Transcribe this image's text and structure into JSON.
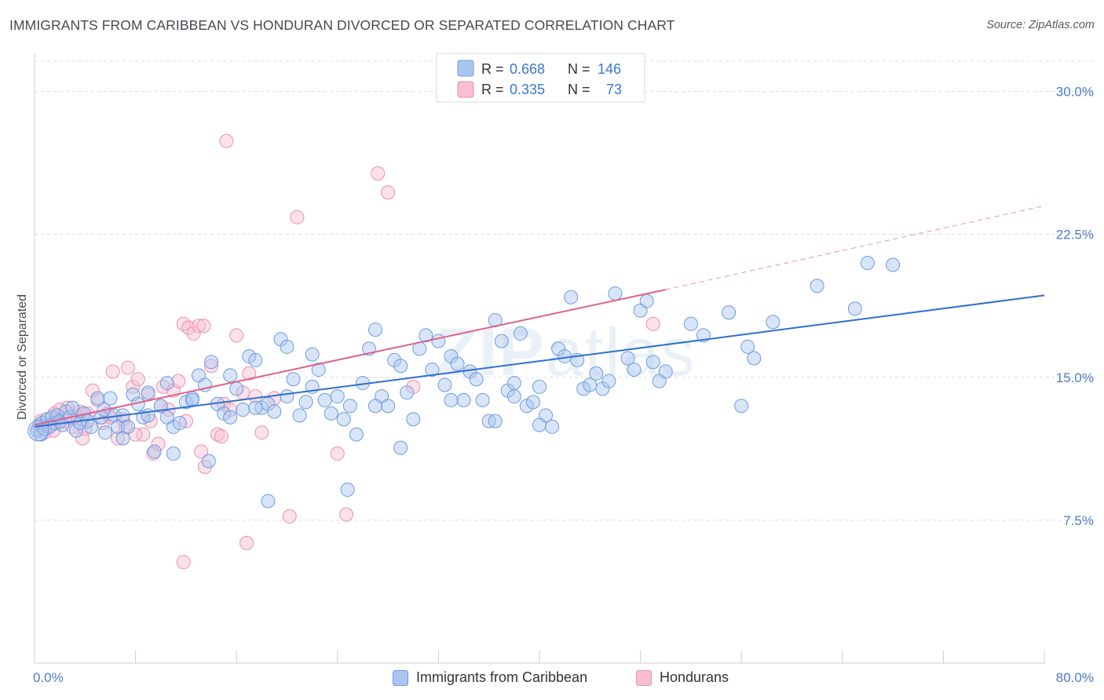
{
  "title": "IMMIGRANTS FROM CARIBBEAN VS HONDURAN DIVORCED OR SEPARATED CORRELATION CHART",
  "source": "Source: ZipAtlas.com",
  "watermark": {
    "bold": "ZIP",
    "thin": "atlas"
  },
  "legend_box": {
    "rows": [
      {
        "r_label": "R =",
        "r_value": "0.668",
        "n_label": "N =",
        "n_value": "146"
      },
      {
        "r_label": "R =",
        "r_value": "0.335",
        "n_label": "N =",
        "n_value": "73"
      }
    ]
  },
  "bottom_legend": [
    "Immigrants from Caribbean",
    "Hondurans"
  ],
  "colors": {
    "blue_fill": "#a9c6f0",
    "blue_stroke": "#6d9be0",
    "blue_line": "#2f6fce",
    "pink_fill": "#f7bfd0",
    "pink_stroke": "#ec8fae",
    "pink_line": "#e0608a",
    "tick_text": "#4a7cc9",
    "grid": "#d8dce2"
  },
  "chart_data": {
    "type": "scatter",
    "title": "IMMIGRANTS FROM CARIBBEAN VS HONDURAN DIVORCED OR SEPARATED CORRELATION CHART",
    "xlabel": "",
    "ylabel": "Divorced or Separated",
    "xlim": [
      0,
      80
    ],
    "ylim": [
      0,
      32
    ],
    "x_tick_labels": [
      "0.0%",
      "80.0%"
    ],
    "y_ticks": [
      7.5,
      15.0,
      22.5,
      30.0
    ],
    "y_tick_labels": [
      "7.5%",
      "15.0%",
      "22.5%",
      "30.0%"
    ],
    "grid": true,
    "legend_position": "top-center",
    "series": [
      {
        "name": "Immigrants from Caribbean",
        "r": 0.668,
        "n": 146,
        "trend": {
          "x": [
            0,
            80
          ],
          "y": [
            12.4,
            19.3
          ],
          "dashed": false
        },
        "points": [
          [
            0.2,
            12.2
          ],
          [
            0.4,
            12.5
          ],
          [
            0.5,
            12.0
          ],
          [
            0.6,
            12.6
          ],
          [
            0.8,
            12.3
          ],
          [
            1.0,
            12.8
          ],
          [
            1.2,
            12.4
          ],
          [
            1.4,
            12.9
          ],
          [
            1.6,
            12.6
          ],
          [
            1.8,
            13.0
          ],
          [
            2.0,
            12.7
          ],
          [
            2.2,
            12.5
          ],
          [
            2.5,
            13.2
          ],
          [
            2.8,
            12.9
          ],
          [
            3.0,
            13.4
          ],
          [
            3.3,
            12.2
          ],
          [
            3.6,
            12.6
          ],
          [
            3.9,
            13.1
          ],
          [
            4.2,
            12.7
          ],
          [
            4.5,
            12.4
          ],
          [
            5.0,
            13.9
          ],
          [
            5.3,
            12.9
          ],
          [
            5.6,
            12.1
          ],
          [
            6.0,
            13.9
          ],
          [
            6.3,
            13.0
          ],
          [
            6.6,
            12.4
          ],
          [
            7.0,
            11.8
          ],
          [
            7.4,
            12.4
          ],
          [
            7.8,
            14.1
          ],
          [
            8.2,
            13.6
          ],
          [
            8.6,
            12.9
          ],
          [
            9.0,
            14.2
          ],
          [
            9.5,
            11.1
          ],
          [
            10.0,
            13.5
          ],
          [
            10.5,
            14.7
          ],
          [
            11.0,
            12.4
          ],
          [
            11.5,
            12.6
          ],
          [
            12.0,
            13.7
          ],
          [
            12.5,
            13.9
          ],
          [
            13.0,
            15.1
          ],
          [
            13.5,
            14.6
          ],
          [
            14.0,
            15.8
          ],
          [
            14.5,
            13.6
          ],
          [
            15.0,
            13.1
          ],
          [
            15.5,
            15.1
          ],
          [
            16.0,
            14.4
          ],
          [
            16.5,
            13.3
          ],
          [
            17.0,
            16.1
          ],
          [
            17.5,
            15.9
          ],
          [
            18.0,
            13.4
          ],
          [
            18.5,
            13.6
          ],
          [
            19.0,
            13.2
          ],
          [
            19.5,
            17.0
          ],
          [
            20.0,
            16.6
          ],
          [
            20.5,
            14.9
          ],
          [
            21.0,
            13.0
          ],
          [
            21.5,
            13.7
          ],
          [
            22.0,
            14.5
          ],
          [
            22.5,
            15.4
          ],
          [
            23.0,
            13.8
          ],
          [
            23.5,
            13.1
          ],
          [
            24.0,
            14.0
          ],
          [
            24.5,
            12.8
          ],
          [
            25.0,
            13.5
          ],
          [
            25.5,
            12.0
          ],
          [
            26.0,
            14.7
          ],
          [
            26.5,
            16.5
          ],
          [
            27.0,
            17.5
          ],
          [
            27.5,
            14.0
          ],
          [
            28.0,
            13.5
          ],
          [
            28.5,
            15.9
          ],
          [
            29.0,
            15.6
          ],
          [
            29.5,
            14.2
          ],
          [
            30.0,
            12.8
          ],
          [
            30.5,
            16.5
          ],
          [
            31.0,
            17.2
          ],
          [
            31.5,
            15.4
          ],
          [
            32.0,
            16.9
          ],
          [
            32.5,
            14.6
          ],
          [
            33.0,
            16.1
          ],
          [
            33.5,
            15.7
          ],
          [
            34.0,
            13.8
          ],
          [
            34.5,
            15.3
          ],
          [
            35.0,
            14.9
          ],
          [
            35.5,
            13.8
          ],
          [
            36.0,
            12.7
          ],
          [
            36.5,
            18.0
          ],
          [
            37.0,
            16.9
          ],
          [
            37.5,
            14.3
          ],
          [
            38.0,
            14.7
          ],
          [
            38.5,
            17.3
          ],
          [
            39.0,
            13.5
          ],
          [
            39.5,
            13.7
          ],
          [
            40.0,
            14.5
          ],
          [
            40.5,
            13.0
          ],
          [
            41.0,
            12.4
          ],
          [
            41.5,
            16.5
          ],
          [
            42.0,
            16.1
          ],
          [
            42.5,
            19.2
          ],
          [
            43.0,
            15.9
          ],
          [
            43.5,
            14.4
          ],
          [
            44.0,
            14.6
          ],
          [
            44.5,
            15.2
          ],
          [
            45.0,
            14.4
          ],
          [
            46.0,
            19.4
          ],
          [
            47.0,
            16.0
          ],
          [
            47.5,
            15.4
          ],
          [
            48.0,
            18.5
          ],
          [
            48.5,
            19.0
          ],
          [
            49.0,
            15.8
          ],
          [
            49.5,
            14.8
          ],
          [
            50.0,
            15.3
          ],
          [
            52.0,
            17.8
          ],
          [
            53.0,
            17.2
          ],
          [
            55.0,
            18.4
          ],
          [
            56.0,
            13.5
          ],
          [
            56.5,
            16.6
          ],
          [
            57.0,
            16.0
          ],
          [
            58.5,
            17.9
          ],
          [
            62.0,
            19.8
          ],
          [
            65.0,
            18.6
          ],
          [
            66.0,
            21.0
          ],
          [
            68.0,
            20.9
          ],
          [
            11.0,
            11.0
          ],
          [
            13.8,
            10.6
          ],
          [
            18.5,
            8.5
          ],
          [
            24.8,
            9.1
          ],
          [
            29.0,
            11.3
          ],
          [
            20.0,
            14.0
          ],
          [
            22.0,
            16.2
          ],
          [
            27.0,
            13.5
          ],
          [
            33.0,
            13.8
          ],
          [
            36.5,
            12.7
          ],
          [
            38.0,
            14.0
          ],
          [
            40.0,
            12.5
          ],
          [
            45.5,
            14.8
          ],
          [
            5.5,
            13.3
          ],
          [
            7.0,
            13.0
          ],
          [
            9.0,
            13.0
          ],
          [
            10.5,
            12.9
          ],
          [
            12.5,
            13.8
          ],
          [
            15.5,
            12.9
          ],
          [
            17.5,
            13.4
          ]
        ]
      },
      {
        "name": "Hondurans",
        "r": 0.335,
        "n": 73,
        "trend": {
          "x": [
            0,
            50
          ],
          "y": [
            12.5,
            19.6
          ],
          "dashed": false
        },
        "trend_ext": {
          "x": [
            50,
            80
          ],
          "y": [
            19.6,
            24.0
          ],
          "dashed": true
        },
        "points": [
          [
            0.3,
            12.3
          ],
          [
            0.5,
            12.7
          ],
          [
            0.8,
            12.1
          ],
          [
            1.0,
            12.8
          ],
          [
            1.3,
            12.5
          ],
          [
            1.6,
            13.1
          ],
          [
            1.9,
            12.6
          ],
          [
            2.2,
            12.9
          ],
          [
            2.6,
            13.4
          ],
          [
            3.0,
            12.4
          ],
          [
            3.4,
            13.0
          ],
          [
            3.8,
            11.8
          ],
          [
            4.2,
            13.1
          ],
          [
            4.6,
            14.3
          ],
          [
            5.0,
            13.8
          ],
          [
            5.4,
            12.6
          ],
          [
            5.8,
            13.1
          ],
          [
            6.2,
            15.3
          ],
          [
            6.6,
            11.8
          ],
          [
            7.0,
            12.8
          ],
          [
            7.4,
            15.5
          ],
          [
            7.8,
            14.5
          ],
          [
            8.2,
            14.9
          ],
          [
            8.6,
            12.0
          ],
          [
            9.0,
            14.1
          ],
          [
            9.4,
            11.0
          ],
          [
            9.8,
            11.5
          ],
          [
            10.2,
            14.5
          ],
          [
            10.6,
            13.3
          ],
          [
            11.0,
            14.3
          ],
          [
            11.4,
            14.8
          ],
          [
            11.8,
            17.8
          ],
          [
            12.2,
            17.6
          ],
          [
            12.6,
            17.3
          ],
          [
            13.0,
            17.7
          ],
          [
            13.4,
            17.7
          ],
          [
            14.0,
            15.6
          ],
          [
            14.5,
            12.0
          ],
          [
            15.0,
            13.6
          ],
          [
            15.5,
            13.3
          ],
          [
            16.0,
            17.2
          ],
          [
            16.5,
            14.2
          ],
          [
            17.0,
            15.2
          ],
          [
            17.5,
            14.0
          ],
          [
            18.0,
            12.1
          ],
          [
            15.2,
            27.4
          ],
          [
            20.8,
            23.4
          ],
          [
            27.2,
            25.7
          ],
          [
            28.0,
            24.7
          ],
          [
            30.0,
            14.5
          ],
          [
            11.8,
            5.3
          ],
          [
            16.8,
            6.3
          ],
          [
            20.2,
            7.7
          ],
          [
            24.7,
            7.8
          ],
          [
            13.5,
            10.3
          ],
          [
            24.0,
            11.0
          ],
          [
            2.0,
            13.3
          ],
          [
            3.2,
            12.9
          ],
          [
            4.0,
            12.3
          ],
          [
            6.0,
            12.9
          ],
          [
            7.2,
            12.4
          ],
          [
            8.0,
            12.0
          ],
          [
            9.2,
            12.7
          ],
          [
            10.0,
            13.5
          ],
          [
            12.0,
            12.7
          ],
          [
            13.2,
            11.1
          ],
          [
            14.8,
            11.9
          ],
          [
            19.0,
            13.9
          ],
          [
            49.0,
            17.8
          ],
          [
            1.1,
            12.4
          ],
          [
            1.5,
            12.2
          ],
          [
            2.4,
            12.7
          ],
          [
            3.6,
            13.2
          ]
        ]
      }
    ]
  }
}
